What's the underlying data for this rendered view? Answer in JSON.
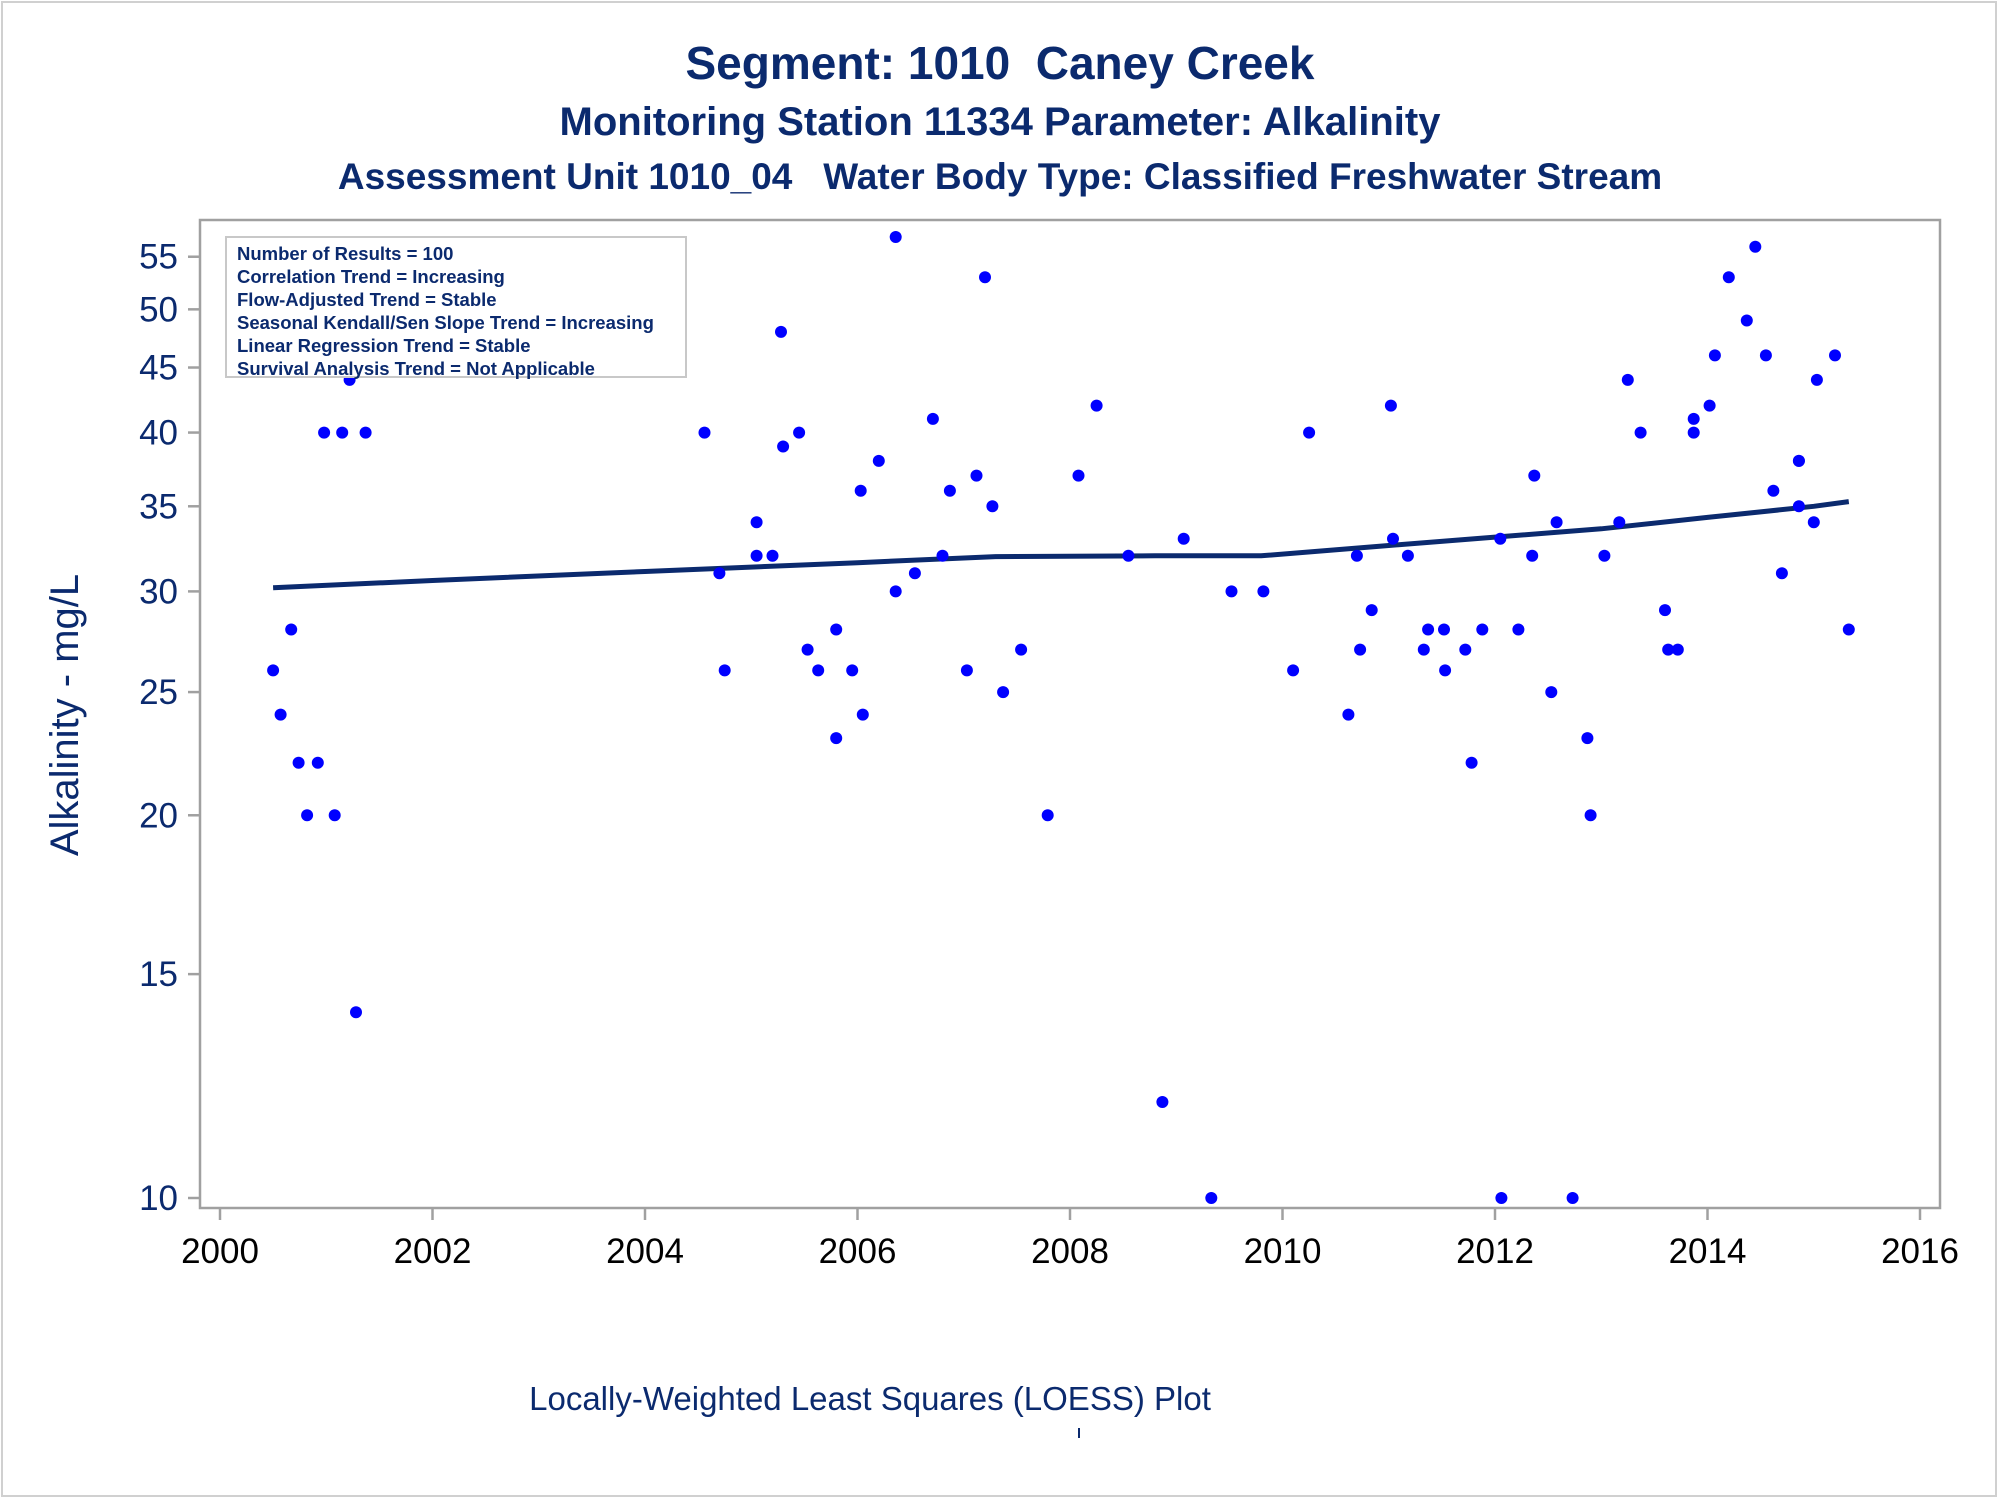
{
  "titles": {
    "line1": "Segment: 1010  Caney Creek",
    "line2": "Monitoring Station 11334 Parameter: Alkalinity",
    "line3": "Assessment Unit 1010_04   Water Body Type: Classified Freshwater Stream"
  },
  "info_box": [
    "Number of Results = 100",
    "Correlation Trend = Increasing",
    "Flow-Adjusted Trend = Stable",
    "Seasonal Kendall/Sen Slope Trend = Increasing",
    "Linear Regression Trend = Stable",
    "Survival Analysis Trend = Not Applicable"
  ],
  "footnote": "Locally-Weighted Least Squares (LOESS) Plot",
  "colors": {
    "text": "#0b2a6e",
    "points": "#0000ff",
    "loess": "#0b2a6e",
    "frame": "#a0a0a0"
  },
  "chart_data": {
    "type": "scatter",
    "title": "Segment: 1010  Caney Creek",
    "ylabel": "Alkalinity - mg/L",
    "xlabel": "",
    "y_scale": "log",
    "xlim": [
      2000,
      2016
    ],
    "ylim": [
      10,
      57
    ],
    "x_ticks": [
      "2000",
      "2002",
      "2004",
      "2006",
      "2008",
      "2010",
      "2012",
      "2014",
      "2016"
    ],
    "y_ticks": [
      "10",
      "15",
      "20",
      "25",
      "30",
      "35",
      "40",
      "45",
      "50",
      "55"
    ],
    "points": [
      [
        2000.5,
        26
      ],
      [
        2000.57,
        24
      ],
      [
        2000.67,
        28
      ],
      [
        2000.74,
        22
      ],
      [
        2000.82,
        20
      ],
      [
        2000.92,
        22
      ],
      [
        2000.98,
        40
      ],
      [
        2001.08,
        20
      ],
      [
        2001.15,
        40
      ],
      [
        2001.22,
        44
      ],
      [
        2001.28,
        14
      ],
      [
        2001.37,
        40
      ],
      [
        2004.56,
        40
      ],
      [
        2004.7,
        31
      ],
      [
        2004.75,
        26
      ],
      [
        2005.05,
        34
      ],
      [
        2005.05,
        32
      ],
      [
        2005.2,
        32
      ],
      [
        2005.28,
        48
      ],
      [
        2005.3,
        39
      ],
      [
        2005.45,
        40
      ],
      [
        2005.53,
        27
      ],
      [
        2005.63,
        26
      ],
      [
        2005.8,
        28
      ],
      [
        2005.8,
        23
      ],
      [
        2005.95,
        26
      ],
      [
        2006.03,
        36
      ],
      [
        2006.05,
        24
      ],
      [
        2006.2,
        38
      ],
      [
        2006.36,
        57
      ],
      [
        2006.36,
        30
      ],
      [
        2006.54,
        31
      ],
      [
        2006.71,
        41
      ],
      [
        2006.8,
        32
      ],
      [
        2006.87,
        36
      ],
      [
        2007.03,
        26
      ],
      [
        2007.12,
        37
      ],
      [
        2007.2,
        53
      ],
      [
        2007.27,
        35
      ],
      [
        2007.37,
        25
      ],
      [
        2007.54,
        27
      ],
      [
        2007.79,
        20
      ],
      [
        2008.08,
        37
      ],
      [
        2008.25,
        42
      ],
      [
        2008.55,
        32
      ],
      [
        2008.87,
        11.9
      ],
      [
        2009.07,
        33
      ],
      [
        2009.33,
        10
      ],
      [
        2009.52,
        30
      ],
      [
        2009.82,
        30
      ],
      [
        2010.1,
        26
      ],
      [
        2010.25,
        40
      ],
      [
        2010.62,
        24
      ],
      [
        2010.7,
        32
      ],
      [
        2010.73,
        27
      ],
      [
        2010.84,
        29
      ],
      [
        2011.02,
        42
      ],
      [
        2011.04,
        33
      ],
      [
        2011.18,
        32
      ],
      [
        2011.33,
        27
      ],
      [
        2011.37,
        28
      ],
      [
        2011.52,
        28
      ],
      [
        2011.53,
        26
      ],
      [
        2011.72,
        27
      ],
      [
        2011.78,
        22
      ],
      [
        2011.88,
        28
      ],
      [
        2012.05,
        33
      ],
      [
        2012.06,
        10
      ],
      [
        2012.22,
        28
      ],
      [
        2012.35,
        32
      ],
      [
        2012.37,
        37
      ],
      [
        2012.53,
        25
      ],
      [
        2012.58,
        34
      ],
      [
        2012.73,
        10
      ],
      [
        2012.87,
        23
      ],
      [
        2012.9,
        20
      ],
      [
        2013.03,
        32
      ],
      [
        2013.17,
        34
      ],
      [
        2013.25,
        44
      ],
      [
        2013.37,
        40
      ],
      [
        2013.6,
        29
      ],
      [
        2013.63,
        27
      ],
      [
        2013.72,
        27
      ],
      [
        2013.87,
        40
      ],
      [
        2013.87,
        41
      ],
      [
        2014.02,
        42
      ],
      [
        2014.07,
        46
      ],
      [
        2014.2,
        53
      ],
      [
        2014.37,
        49
      ],
      [
        2014.45,
        56
      ],
      [
        2014.55,
        46
      ],
      [
        2014.62,
        36
      ],
      [
        2014.7,
        31
      ],
      [
        2014.86,
        38
      ],
      [
        2014.86,
        35
      ],
      [
        2015.0,
        34
      ],
      [
        2015.03,
        44
      ],
      [
        2015.2,
        46
      ],
      [
        2015.33,
        28
      ],
      [
        2014.86,
        38
      ]
    ],
    "loess": [
      [
        2000.5,
        30.2
      ],
      [
        2002.0,
        30.6
      ],
      [
        2004.0,
        31.1
      ],
      [
        2006.0,
        31.6
      ],
      [
        2007.3,
        31.95
      ],
      [
        2008.8,
        32.0
      ],
      [
        2009.8,
        32.0
      ],
      [
        2011.0,
        32.6
      ],
      [
        2012.0,
        33.1
      ],
      [
        2013.0,
        33.6
      ],
      [
        2014.0,
        34.3
      ],
      [
        2015.0,
        35.0
      ],
      [
        2015.33,
        35.3
      ]
    ]
  }
}
